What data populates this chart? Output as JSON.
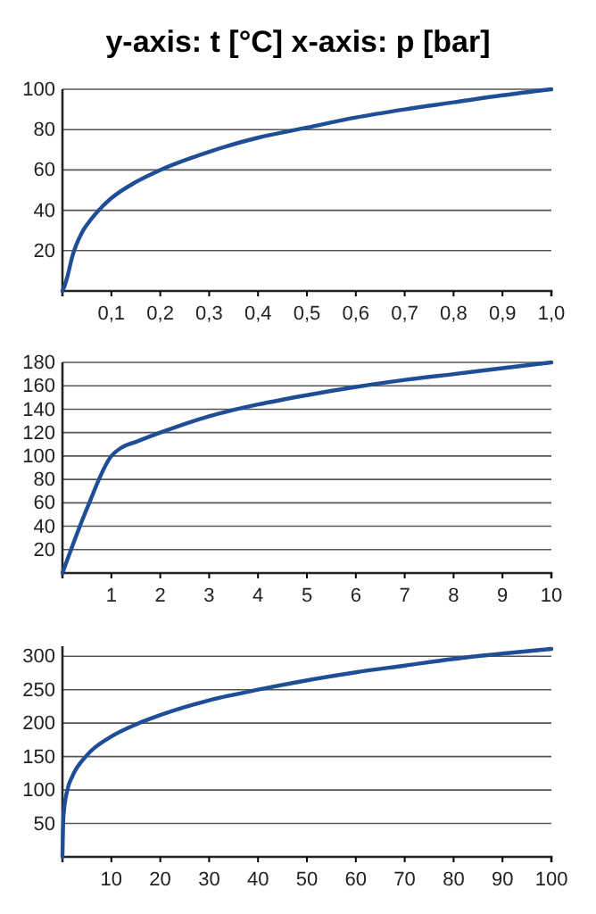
{
  "chart_data": [
    {
      "type": "line",
      "title": "y-axis: t [°C]   x-axis: p [bar]",
      "color": "#1f4e96",
      "grid": "y",
      "x": [
        0,
        0.005,
        0.01,
        0.02,
        0.04,
        0.06,
        0.08,
        0.1,
        0.15,
        0.2,
        0.3,
        0.4,
        0.5,
        0.6,
        0.7,
        0.8,
        0.9,
        1.0
      ],
      "values": [
        0,
        3,
        7,
        17,
        29,
        36,
        41.5,
        46,
        54,
        60,
        69,
        76,
        81,
        86,
        90,
        93.5,
        97,
        100
      ],
      "xlim": [
        0,
        1
      ],
      "ylim": [
        0,
        100
      ],
      "xticks": [
        {
          "value": 0.1,
          "label": "0,1"
        },
        {
          "value": 0.2,
          "label": "0,2"
        },
        {
          "value": 0.3,
          "label": "0,3"
        },
        {
          "value": 0.4,
          "label": "0,4"
        },
        {
          "value": 0.5,
          "label": "0,5"
        },
        {
          "value": 0.6,
          "label": "0,6"
        },
        {
          "value": 0.7,
          "label": "0,7"
        },
        {
          "value": 0.8,
          "label": "0,8"
        },
        {
          "value": 0.9,
          "label": "0,9"
        },
        {
          "value": 1.0,
          "label": "1,0"
        }
      ],
      "yticks": [
        20,
        40,
        60,
        80,
        100
      ]
    },
    {
      "type": "line",
      "color": "#1f4e96",
      "grid": "y",
      "x": [
        0,
        0.5,
        1,
        1.2,
        1.5,
        2,
        3,
        4,
        5,
        6,
        7,
        8,
        9,
        10
      ],
      "values": [
        0,
        55,
        100,
        107,
        112,
        120,
        134,
        144,
        152,
        159,
        165,
        170,
        175,
        180
      ],
      "xlim": [
        0,
        10
      ],
      "ylim": [
        0,
        180
      ],
      "xticks": [
        1,
        2,
        3,
        4,
        5,
        6,
        7,
        8,
        9,
        10
      ],
      "yticks": [
        20,
        40,
        60,
        80,
        100,
        120,
        140,
        160,
        180
      ]
    },
    {
      "type": "line",
      "color": "#1f4e96",
      "grid": "y",
      "x": [
        0,
        0.2,
        1,
        2,
        5,
        10,
        15,
        20,
        30,
        40,
        50,
        60,
        70,
        80,
        90,
        100
      ],
      "values": [
        0,
        60,
        100,
        120,
        152,
        180,
        198,
        212,
        234,
        250,
        264,
        276,
        286,
        296,
        304,
        311
      ],
      "xlim": [
        0,
        100
      ],
      "ylim": [
        0,
        315
      ],
      "xticks": [
        10,
        20,
        30,
        40,
        50,
        60,
        70,
        80,
        90,
        100
      ],
      "yticks": [
        50,
        100,
        150,
        200,
        250,
        300
      ]
    }
  ]
}
